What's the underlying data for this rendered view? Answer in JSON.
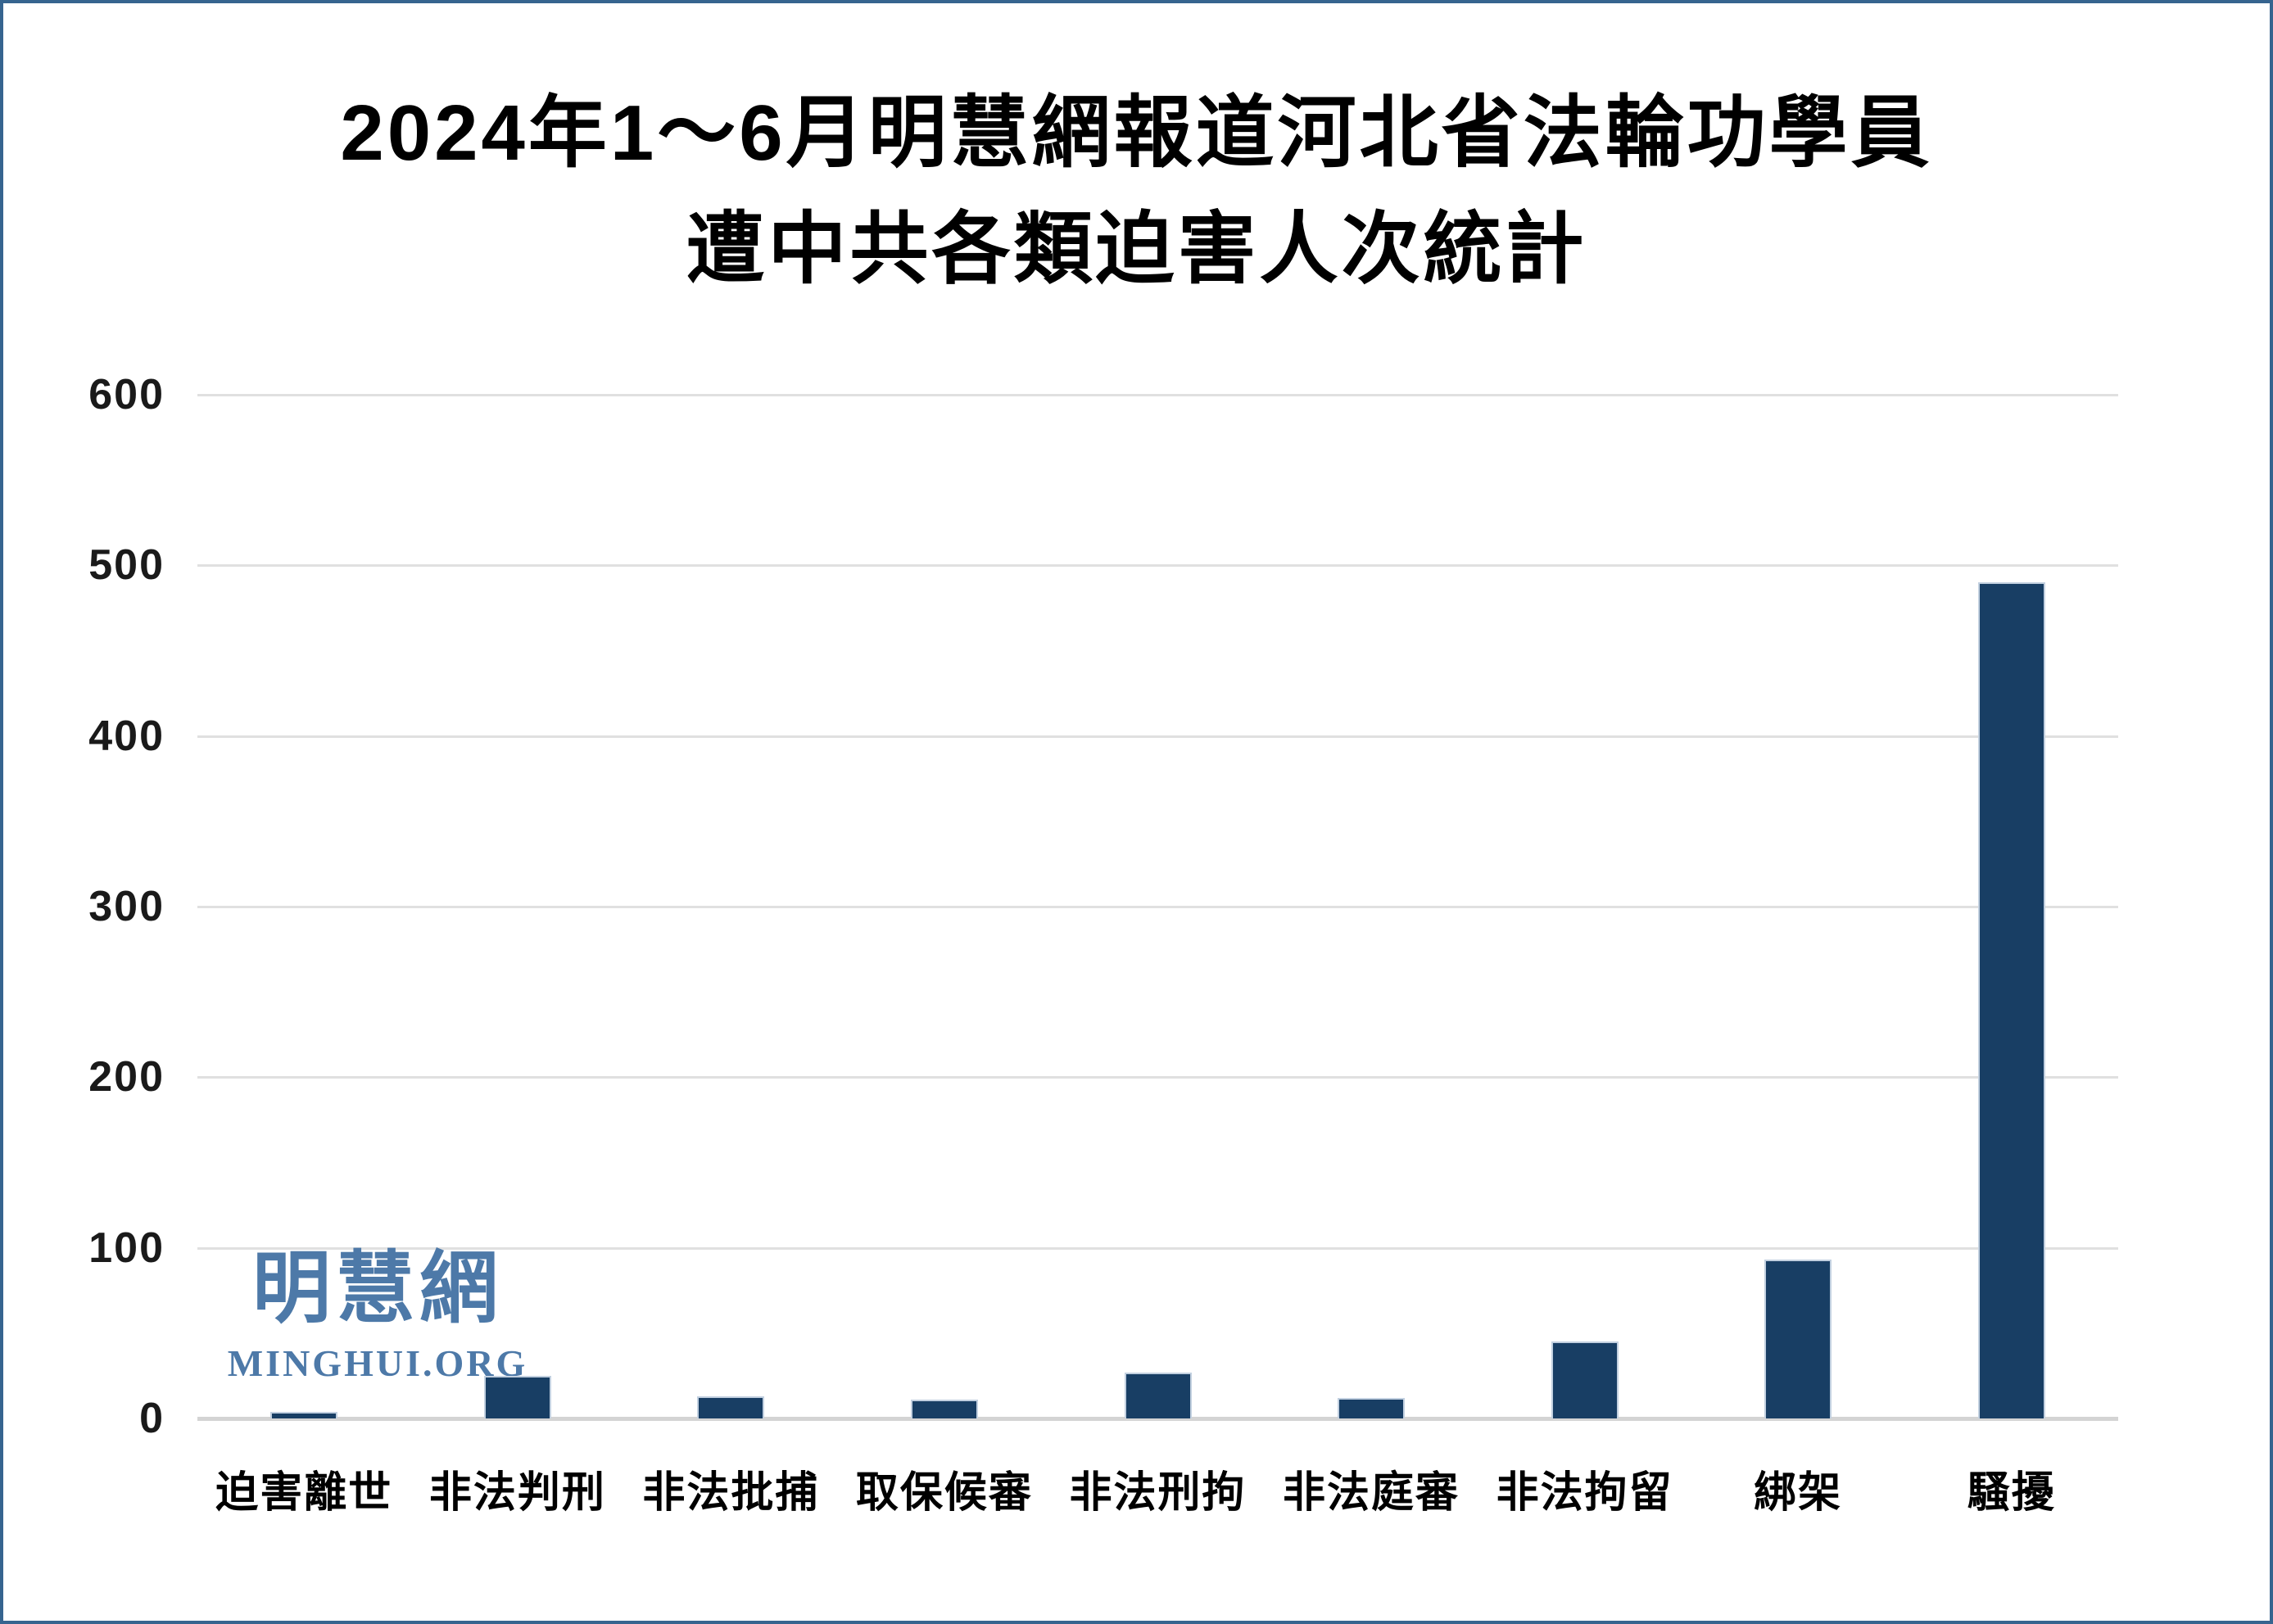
{
  "title": {
    "line1": "2024年1～6月明慧網報道河北省法輪功學員",
    "line2": "遭中共各類迫害人次統計"
  },
  "watermark": {
    "chinese": "明慧網",
    "english": "MINGHUI.ORG",
    "color": "#4d79a8"
  },
  "chart_data": {
    "type": "bar",
    "title": "2024年1～6月明慧網報道河北省法輪功學員遭中共各類迫害人次統計",
    "categories": [
      "迫害離世",
      "非法判刑",
      "非法批捕",
      "取保候審",
      "非法刑拘",
      "非法庭審",
      "非法拘留",
      "綁架",
      "騷擾"
    ],
    "values": [
      4,
      25,
      13,
      11,
      27,
      12,
      45,
      93,
      490
    ],
    "xlabel": "",
    "ylabel": "",
    "ylim": [
      0,
      600
    ],
    "yticks": [
      0,
      100,
      200,
      300,
      400,
      500,
      600
    ],
    "grid": true,
    "legend": false,
    "bar_color": "#183e64",
    "gridline_color": "#e0e0e0",
    "baseline_color": "#d4d4d4"
  }
}
